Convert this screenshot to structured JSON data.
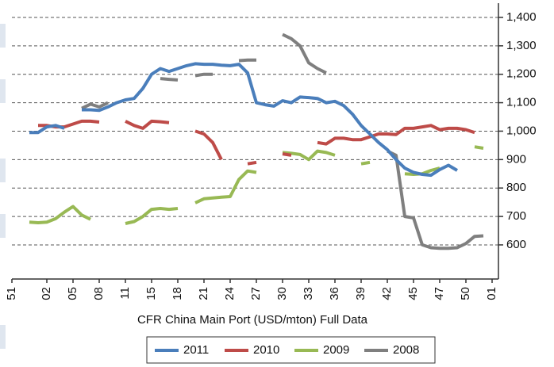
{
  "chart_data": {
    "type": "line",
    "xlabel": "CFR China Main Port (USD/mton) Full Data",
    "categories": [
      "51",
      null,
      null,
      null,
      "02",
      null,
      null,
      "05",
      null,
      null,
      "08",
      null,
      null,
      "11",
      null,
      null,
      "15",
      null,
      null,
      "18",
      null,
      null,
      "21",
      null,
      null,
      "24",
      null,
      null,
      "27",
      null,
      null,
      "30",
      null,
      null,
      "33",
      null,
      null,
      "36",
      null,
      null,
      "39",
      null,
      null,
      "42",
      null,
      null,
      "45",
      null,
      null,
      "47",
      null,
      null,
      "50",
      null,
      null,
      "01"
    ],
    "series": [
      {
        "name": "2011",
        "color": "#4a7ebb",
        "values": [
          null,
          null,
          995,
          995,
          1015,
          1020,
          1010,
          null,
          1075,
          1075,
          1073,
          1085,
          1100,
          1110,
          1115,
          1150,
          1200,
          1220,
          1210,
          1220,
          1230,
          1237,
          1235,
          1235,
          1232,
          1230,
          1235,
          1205,
          1100,
          1093,
          1088,
          1107,
          1100,
          1120,
          1118,
          1115,
          1100,
          1105,
          1090,
          1060,
          1020,
          990,
          960,
          935,
          900,
          870,
          855,
          848,
          845,
          865,
          880,
          862,
          null,
          null,
          null,
          null
        ]
      },
      {
        "name": "2010",
        "color": "#be4b48",
        "values": [
          null,
          null,
          null,
          1020,
          1020,
          1015,
          1015,
          1025,
          1035,
          1035,
          1032,
          null,
          null,
          1035,
          1020,
          1010,
          1035,
          1033,
          1030,
          null,
          null,
          1000,
          990,
          960,
          900,
          null,
          null,
          885,
          890,
          null,
          null,
          920,
          915,
          null,
          null,
          960,
          955,
          975,
          975,
          970,
          970,
          980,
          990,
          990,
          988,
          1010,
          1010,
          1015,
          1020,
          1005,
          1010,
          1010,
          1005,
          995,
          null,
          null
        ]
      },
      {
        "name": "2009",
        "color": "#98b954",
        "values": [
          null,
          null,
          680,
          678,
          680,
          692,
          715,
          735,
          705,
          690,
          null,
          null,
          null,
          675,
          682,
          700,
          725,
          728,
          725,
          728,
          null,
          748,
          762,
          765,
          768,
          770,
          830,
          860,
          855,
          null,
          null,
          925,
          922,
          918,
          900,
          930,
          925,
          915,
          null,
          null,
          885,
          890,
          null,
          null,
          null,
          850,
          848,
          850,
          862,
          870,
          null,
          null,
          null,
          945,
          940,
          null
        ]
      },
      {
        "name": "2008",
        "color": "#7f7f7f",
        "values": [
          null,
          null,
          null,
          null,
          null,
          null,
          null,
          null,
          1080,
          1095,
          1085,
          1100,
          null,
          null,
          null,
          null,
          null,
          1185,
          1182,
          1180,
          null,
          1195,
          1200,
          1200,
          null,
          null,
          1248,
          1250,
          1250,
          null,
          null,
          1340,
          1325,
          1300,
          1240,
          1220,
          1205,
          null,
          null,
          null,
          null,
          null,
          null,
          930,
          915,
          700,
          695,
          600,
          590,
          588,
          588,
          590,
          605,
          630,
          632,
          null
        ]
      }
    ],
    "ylim": [
      480,
      1450
    ],
    "yticks": [
      600,
      700,
      800,
      900,
      {
        "value": 1000,
        "label": "1,000"
      },
      {
        "value": 1100,
        "label": "1,100"
      },
      {
        "value": 1200,
        "label": "1,200"
      },
      {
        "value": 1300,
        "label": "1,300"
      },
      {
        "value": 1400,
        "label": "1,400"
      }
    ],
    "grid": true,
    "yaxis_position": "right",
    "legend": "bottom"
  }
}
